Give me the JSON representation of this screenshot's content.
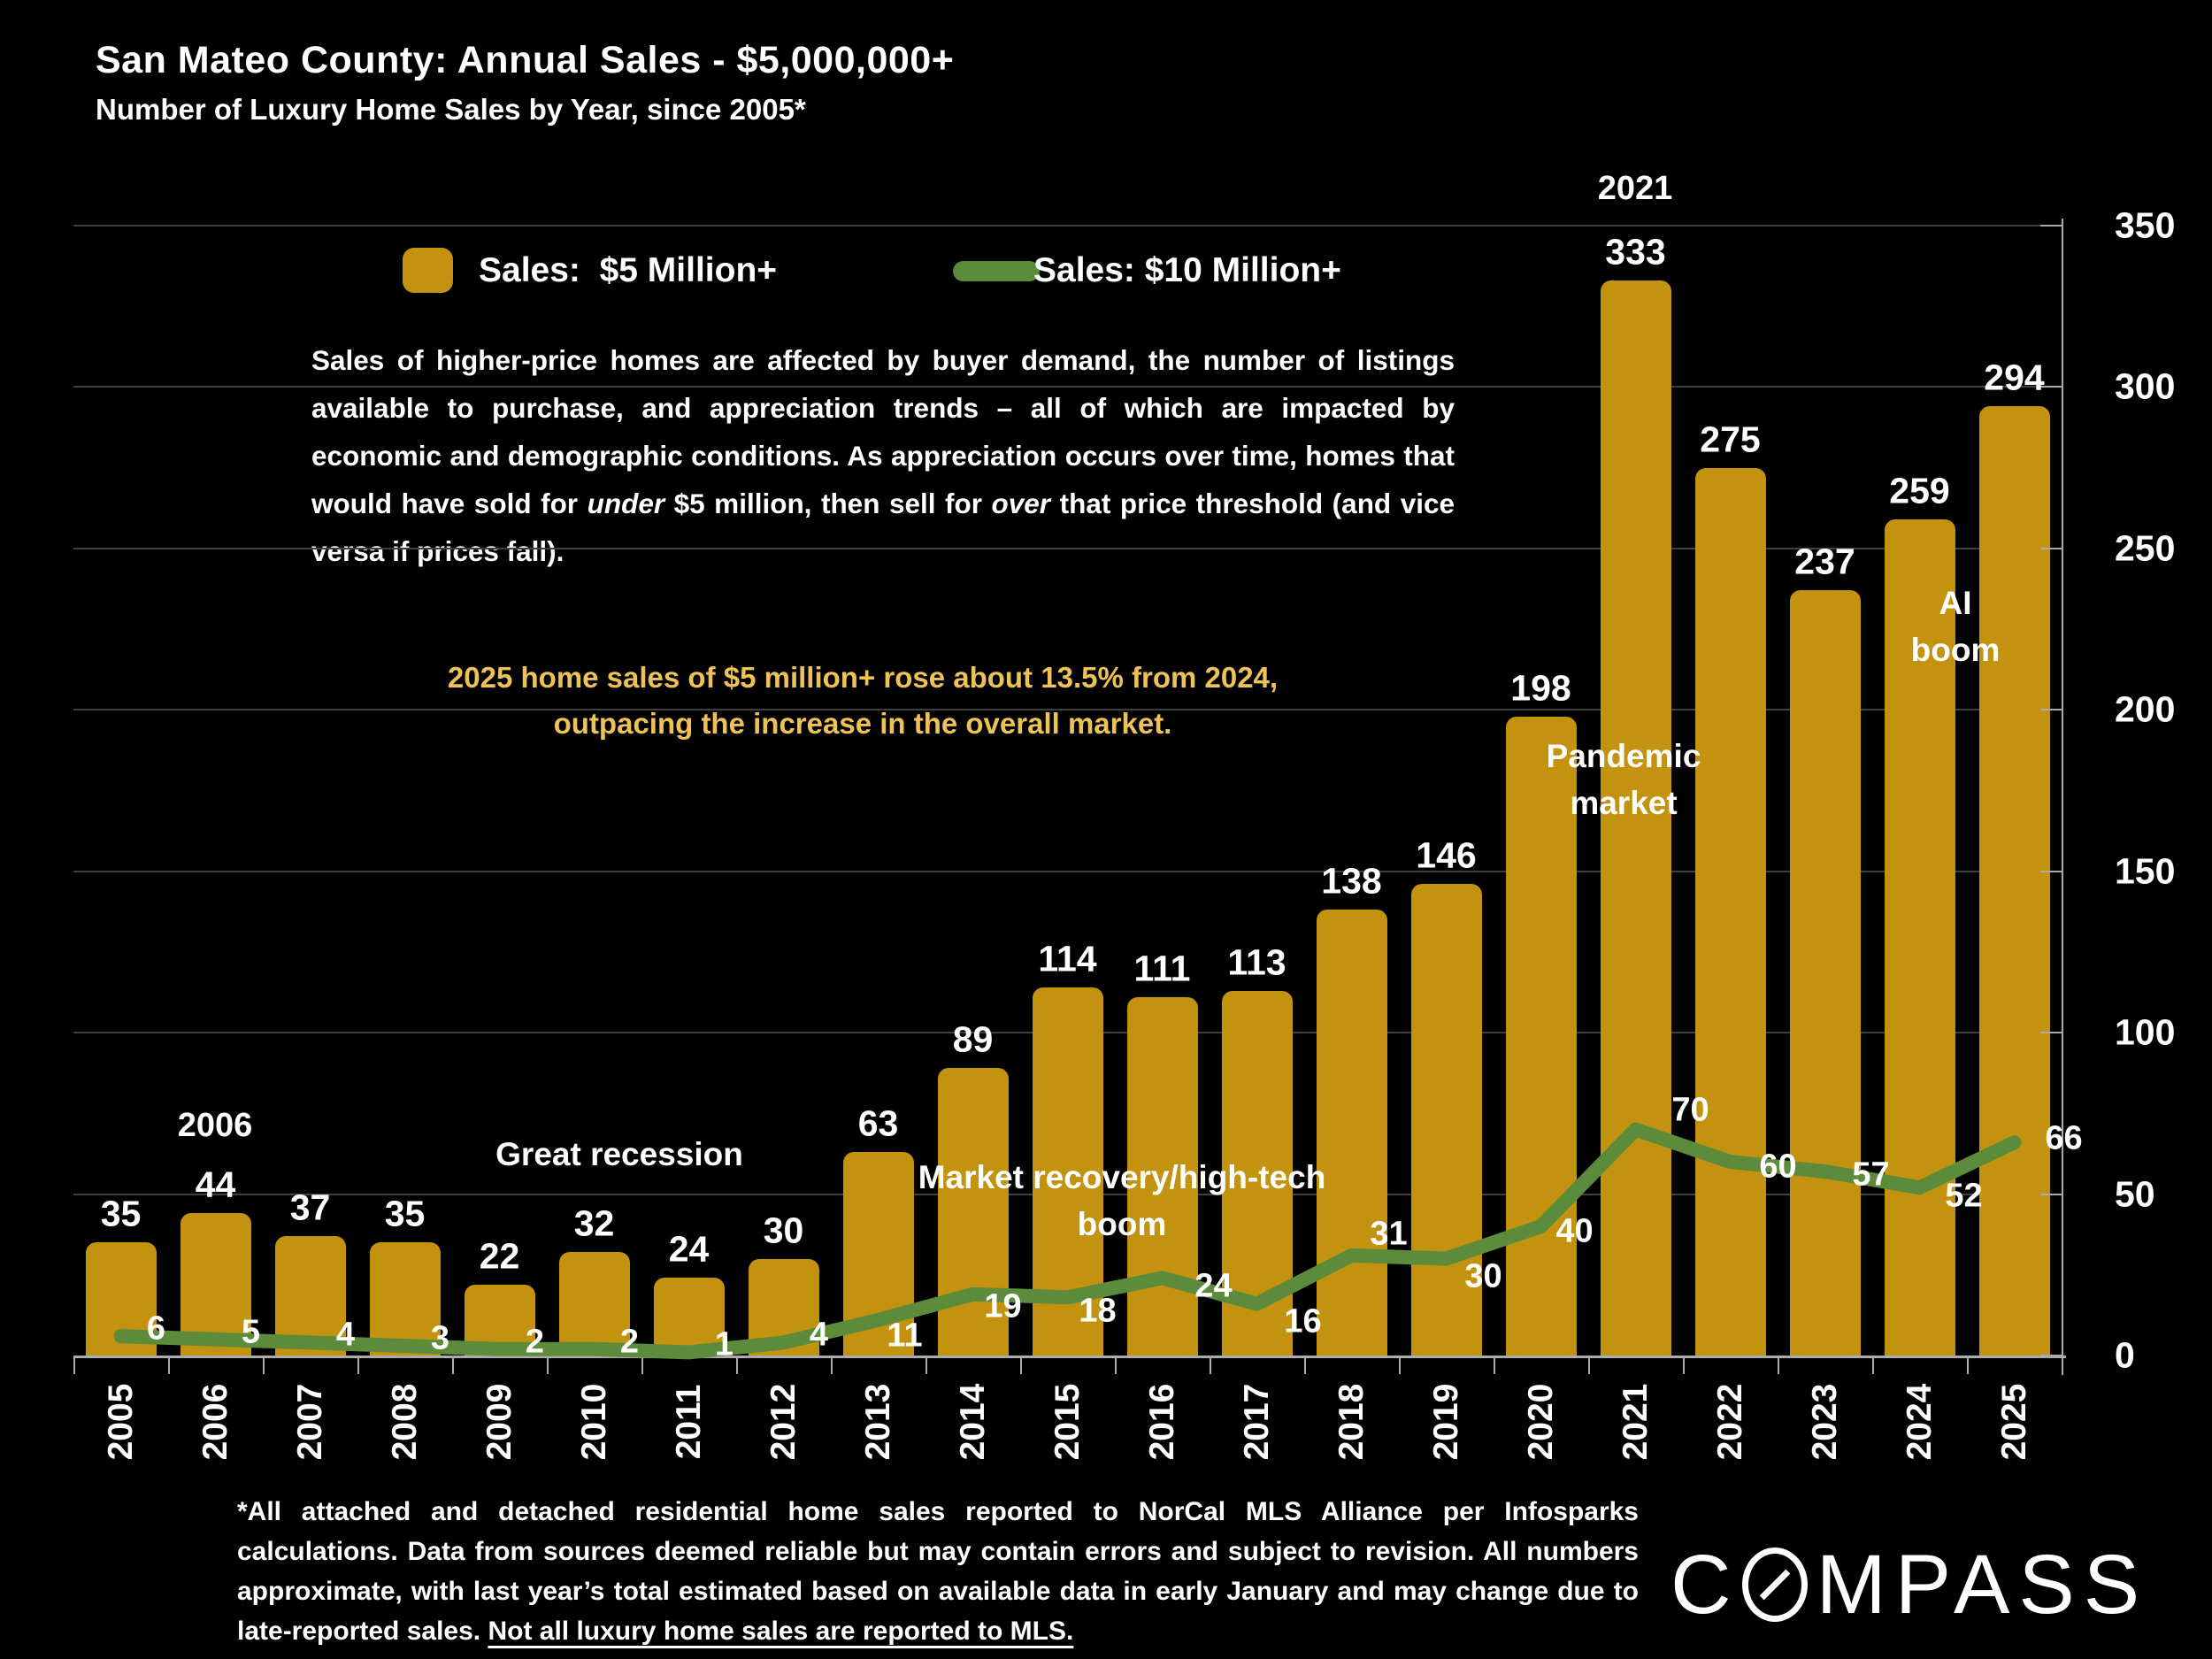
{
  "title": "San Mateo County:  Annual Sales - $5,000,000+",
  "subtitle": "Number of Luxury Home Sales by Year, since 2005*",
  "colors": {
    "background": "#000000",
    "bar_gold": "#C3930F",
    "line_green": "#5C8B3C",
    "highlight_gold": "#EEC255",
    "gridline": "#3F3F3F",
    "axis": "#ABABAB",
    "text": "#FFFFFF"
  },
  "legend": {
    "bar_label": "Sales:  $5 Million+",
    "line_label": "Sales: $10 Million+"
  },
  "paragraph": [
    {
      "text": "Sales of higher-price homes are affected by buyer demand, the number of listings available to purchase, and appreciation trends – all of which are impacted by economic and demographic conditions. As appreciation occurs over time, homes that would have sold for "
    },
    {
      "text": "under",
      "italic": true
    },
    {
      "text": " $5 million, then sell for "
    },
    {
      "text": "over",
      "italic": true
    },
    {
      "text": " that price threshold (and vice versa if prices fall)."
    }
  ],
  "highlight": {
    "line1": "2025 home sales of $5 million+ rose about 13.5% from 2024,",
    "line2": "outpacing the increase in the overall market."
  },
  "chart_data": {
    "type": "bar",
    "title": "San Mateo County: Annual Sales - $5,000,000+",
    "categories": [
      "2005",
      "2006",
      "2007",
      "2008",
      "2009",
      "2010",
      "2011",
      "2012",
      "2013",
      "2014",
      "2015",
      "2016",
      "2017",
      "2018",
      "2019",
      "2020",
      "2021",
      "2022",
      "2023",
      "2024",
      "2025"
    ],
    "series": [
      {
        "name": "Sales: $5 Million+",
        "type": "bar",
        "color": "#C3930F",
        "values": [
          35,
          44,
          37,
          35,
          22,
          32,
          24,
          30,
          63,
          89,
          114,
          111,
          113,
          138,
          146,
          198,
          333,
          275,
          237,
          259,
          294
        ]
      },
      {
        "name": "Sales: $10 Million+",
        "type": "line",
        "color": "#5C8B3C",
        "values": [
          6,
          5,
          4,
          3,
          2,
          2,
          1,
          4,
          11,
          19,
          18,
          24,
          16,
          31,
          30,
          40,
          70,
          60,
          57,
          52,
          66
        ]
      }
    ],
    "ylim": [
      0,
      350
    ],
    "y_ticks": [
      0,
      50,
      100,
      150,
      200,
      250,
      300,
      350
    ],
    "y_axis_side": "right",
    "grid": true,
    "legend_position": "top",
    "annotations": [
      "2006",
      "2021",
      "Great recession",
      "Market recovery/high-tech boom",
      "Pandemic market",
      "AI boom"
    ]
  },
  "annotations": {
    "year2006": "2006",
    "year2021": "2021",
    "great_recession": "Great recession",
    "market_recovery": "Market recovery/high-tech\nboom",
    "pandemic": "Pandemic\nmarket",
    "ai_boom": "AI\nboom"
  },
  "footer": [
    {
      "text": "*All attached and detached residential home sales reported to NorCal MLS Alliance per Infosparks calculations. Data from sources deemed reliable but may contain errors and subject to revision. All numbers approximate, with last year’s total estimated based on available data in early January and may change due to late-reported sales. "
    },
    {
      "text": "Not all luxury home sales are reported to MLS.",
      "underline": true
    }
  ],
  "logo": {
    "letter_c": "C",
    "letters_rest": "MPASS",
    "name": "COMPASS"
  }
}
